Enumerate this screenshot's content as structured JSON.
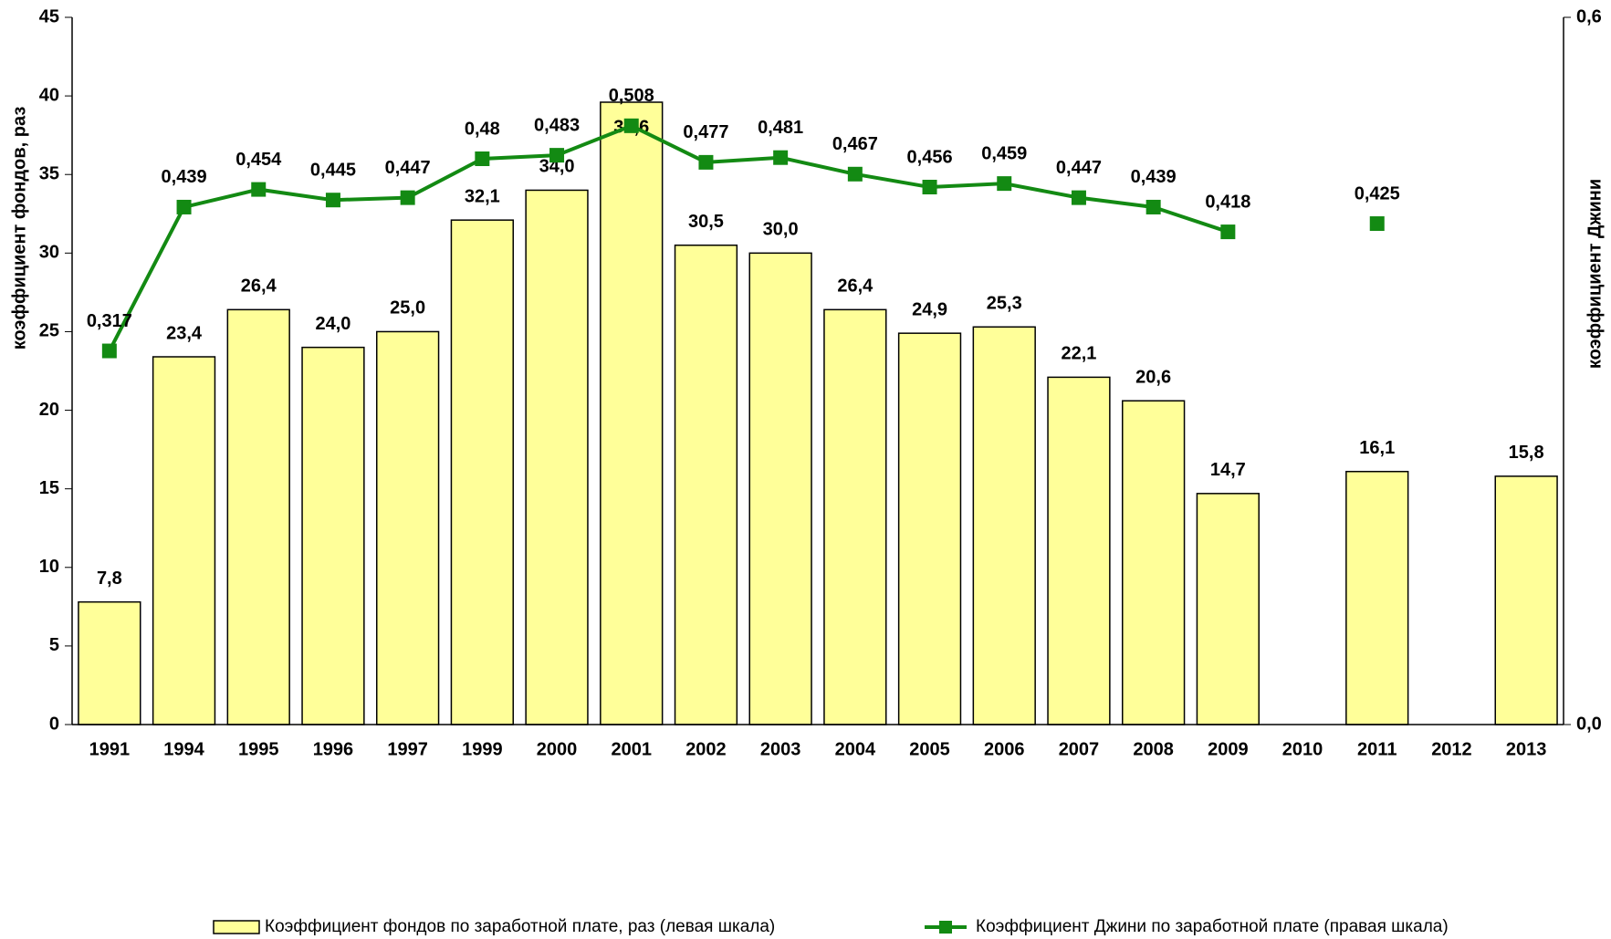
{
  "chart_data": {
    "type": "bar",
    "categories": [
      "1991",
      "1994",
      "1995",
      "1996",
      "1997",
      "1999",
      "2000",
      "2001",
      "2002",
      "2003",
      "2004",
      "2005",
      "2006",
      "2007",
      "2008",
      "2009",
      "2010",
      "2011",
      "2012",
      "2013"
    ],
    "ylabel": "коэффициент фондов, раз",
    "y2label": "коэффициент Джини",
    "ylim": [
      0,
      45
    ],
    "yticks": [
      0,
      5,
      10,
      15,
      20,
      25,
      30,
      35,
      40,
      45
    ],
    "y2lim": [
      0,
      0.6
    ],
    "y2ticks": [
      {
        "value": 0,
        "label": "0,0"
      },
      {
        "value": 0.6,
        "label": "0,6"
      }
    ],
    "legend": "bottom",
    "series": [
      {
        "name": "Коэффициент фондов по заработной плате, раз (левая шкала)",
        "type": "bar",
        "color": "#ffff99",
        "values": [
          7.8,
          23.4,
          26.4,
          24.0,
          25.0,
          32.1,
          34.0,
          39.6,
          30.5,
          30.0,
          26.4,
          24.9,
          25.3,
          22.1,
          20.6,
          14.7,
          null,
          16.1,
          null,
          15.8
        ],
        "value_labels": [
          "7,8",
          "23,4",
          "26,4",
          "24,0",
          "25,0",
          "32,1",
          "34,0",
          "39,6",
          "30,5",
          "30,0",
          "26,4",
          "24,9",
          "25,3",
          "22,1",
          "20,6",
          "14,7",
          null,
          "16,1",
          null,
          "15,8"
        ]
      },
      {
        "name": "Коэффициент Джини по заработной плате (правая шкала)",
        "type": "line",
        "axis": "y2",
        "color": "#138a13",
        "values": [
          0.317,
          0.439,
          0.454,
          0.445,
          0.447,
          0.48,
          0.483,
          0.508,
          0.477,
          0.481,
          0.467,
          0.456,
          0.459,
          0.447,
          0.439,
          0.418,
          null,
          0.425,
          null,
          null
        ],
        "value_labels": [
          "0,317",
          "0,439",
          "0,454",
          "0,445",
          "0,447",
          "0,48",
          "0,483",
          "0,508",
          "0,477",
          "0,481",
          "0,467",
          "0,456",
          "0,459",
          "0,447",
          "0,439",
          "0,418",
          null,
          "0,425",
          null,
          null
        ]
      }
    ]
  }
}
